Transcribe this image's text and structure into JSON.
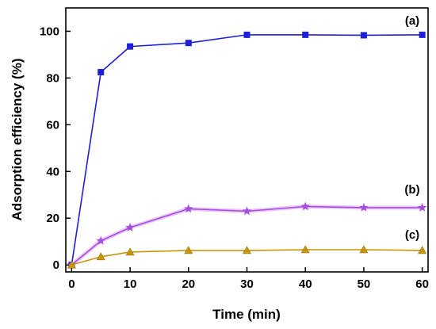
{
  "chart_data": {
    "type": "line",
    "xlabel": "Time (min)",
    "ylabel": "Adsorption efficiency (%)",
    "xlim": [
      -1,
      61
    ],
    "ylim": [
      -3,
      110
    ],
    "xticks": [
      0,
      10,
      20,
      30,
      40,
      50,
      60
    ],
    "yticks": [
      0,
      20,
      40,
      60,
      80,
      100
    ],
    "x_tick_labels": [
      "0",
      "10",
      "20",
      "30",
      "40",
      "50",
      "60"
    ],
    "y_tick_labels": [
      "0",
      "20",
      "40",
      "60",
      "80",
      "100"
    ],
    "grid": false,
    "legend": "none",
    "series": [
      {
        "name": "(a)",
        "marker": "square",
        "color": "#1f1fd8",
        "x": [
          0,
          5,
          10,
          20,
          30,
          40,
          50,
          60
        ],
        "values": [
          0,
          82.5,
          93.5,
          95,
          98.5,
          98.5,
          98.3,
          98.5
        ]
      },
      {
        "name": "(b)",
        "marker": "star",
        "color": "#a64ee0",
        "x": [
          0,
          5,
          10,
          20,
          30,
          40,
          50,
          60
        ],
        "values": [
          0,
          10.3,
          16,
          24,
          23,
          25,
          24.5,
          24.5
        ]
      },
      {
        "name": "(c)",
        "marker": "triangle",
        "color": "#c8960c",
        "x": [
          0,
          5,
          10,
          20,
          30,
          40,
          50,
          60
        ],
        "values": [
          0,
          3.5,
          5.5,
          6.2,
          6.2,
          6.5,
          6.5,
          6.2
        ]
      }
    ]
  }
}
